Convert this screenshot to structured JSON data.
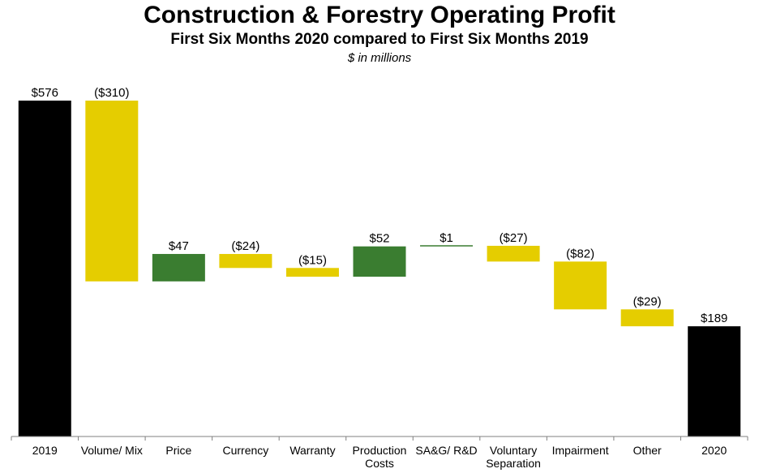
{
  "title": "Construction & Forestry Operating Profit",
  "subtitle": "First Six Months 2020 compared to First Six Months 2019",
  "units": "$ in millions",
  "colors": {
    "total": "#000000",
    "decrease": "#e5cd00",
    "increase": "#3a7d30",
    "axis": "#808080"
  },
  "chart_data": {
    "type": "bar",
    "subtype": "waterfall",
    "categories": [
      "2019",
      "Volume/ Mix",
      "Price",
      "Currency",
      "Warranty",
      "Production Costs",
      "SA&G/ R&D",
      "Voluntary Separation",
      "Impairment",
      "Other",
      "2020"
    ],
    "values": [
      576,
      -310,
      47,
      -24,
      -15,
      52,
      1,
      -27,
      -82,
      -29,
      189
    ],
    "kinds": [
      "total",
      "delta",
      "delta",
      "delta",
      "delta",
      "delta",
      "delta",
      "delta",
      "delta",
      "delta",
      "total"
    ],
    "data_labels": [
      "$576",
      "($310)",
      "$47",
      "($24)",
      "($15)",
      "$52",
      "$1",
      "($27)",
      "($82)",
      "($29)",
      "$189"
    ],
    "ylim": [
      0,
      576
    ],
    "grid": false,
    "legend": "none"
  }
}
